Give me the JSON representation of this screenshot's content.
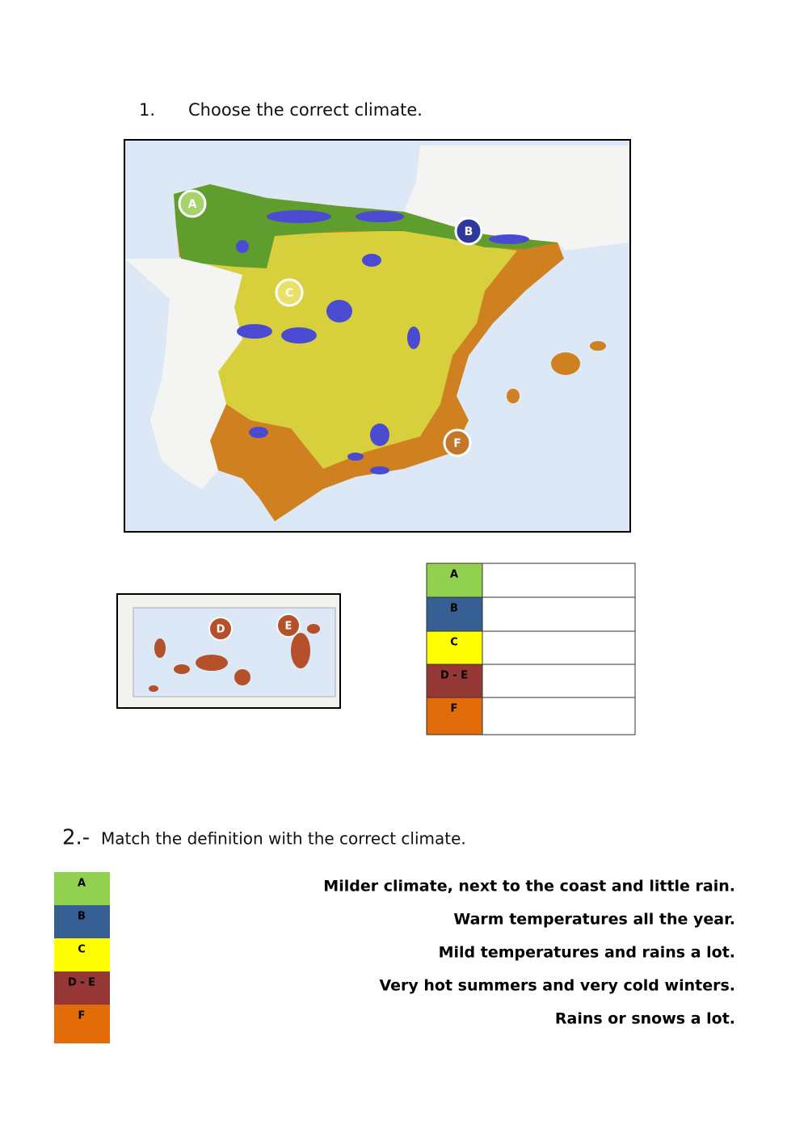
{
  "question1": {
    "number": "1.",
    "text": "Choose the correct climate."
  },
  "map": {
    "labels": [
      "A",
      "B",
      "C",
      "F"
    ]
  },
  "canary_map": {
    "labels": [
      "D",
      "E"
    ]
  },
  "table": {
    "rows": [
      {
        "label": "A",
        "color": "#92d050"
      },
      {
        "label": "B",
        "color": "#365f94"
      },
      {
        "label": "C",
        "color": "#ffff00"
      },
      {
        "label": "D - E",
        "color": "#953734"
      },
      {
        "label": "F",
        "color": "#e36c0a"
      }
    ]
  },
  "question2": {
    "number": "2.-",
    "text": "Match the definition with the correct climate."
  },
  "match": {
    "climates": [
      {
        "label": "A",
        "color": "#92d050"
      },
      {
        "label": "B",
        "color": "#365f94"
      },
      {
        "label": "C",
        "color": "#ffff00"
      },
      {
        "label": "D - E",
        "color": "#953734"
      },
      {
        "label": "F",
        "color": "#e36c0a"
      }
    ],
    "definitions": [
      "Milder climate, next to the coast and little rain.",
      "Warm temperatures all the year.",
      "Mild temperatures and rains a lot.",
      "Very hot summers and very cold winters.",
      "Rains or snows a lot."
    ]
  }
}
